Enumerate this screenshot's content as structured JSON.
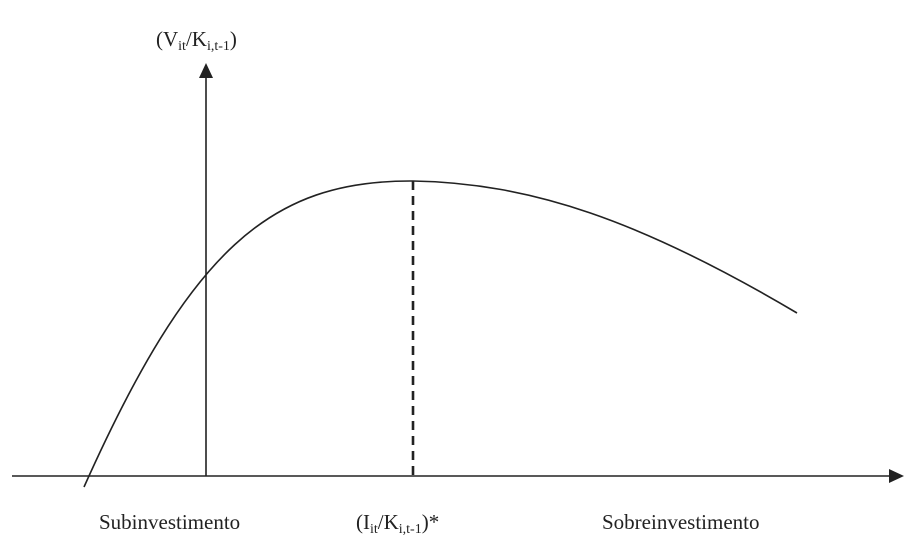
{
  "labels": {
    "y_axis": {
      "pre": "(V",
      "sub1": "it",
      "mid": "/K",
      "sub2": "i,t-1",
      "post": ")"
    },
    "x_optimum": {
      "pre": "(I",
      "sub1": "it",
      "mid": "/K",
      "sub2": "i,t-1",
      "post": ")*"
    },
    "underinvestment": "Subinvestimento",
    "overinvestment": "Sobreinvestimento"
  },
  "colors": {
    "ink": "#222222",
    "background": "#ffffff"
  }
}
